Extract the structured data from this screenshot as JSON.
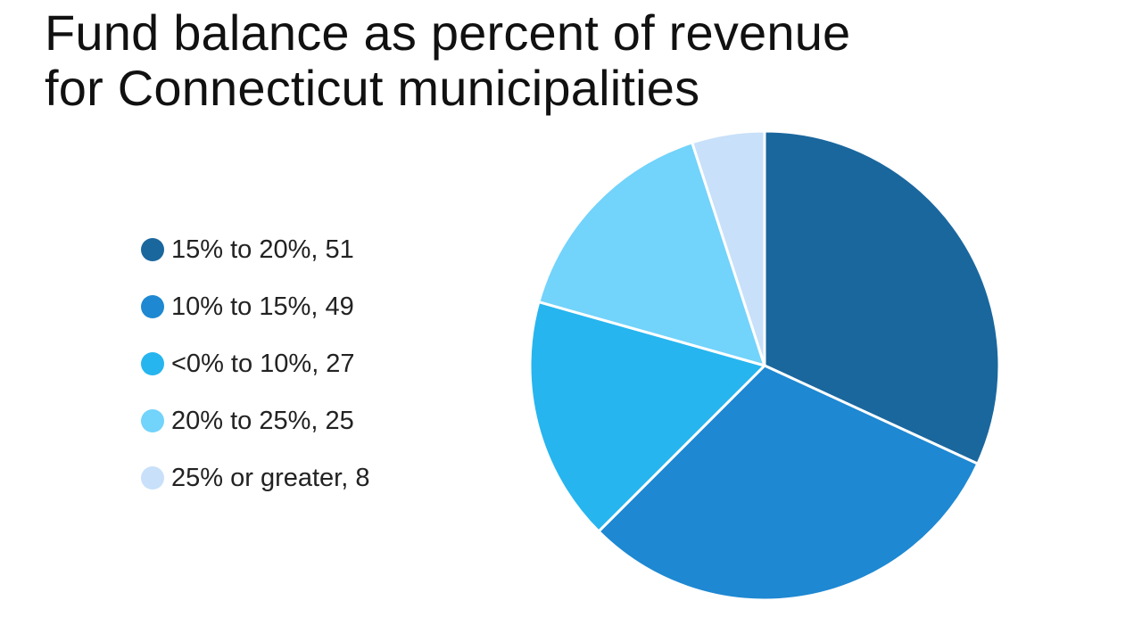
{
  "chart_data": {
    "type": "pie",
    "title_lines": [
      "Fund balance as percent of revenue",
      "for Connecticut municipalities"
    ],
    "legend_placement": "left",
    "slices": [
      {
        "label": "15% to 20%, 51",
        "category": "15% to 20%",
        "value": 51,
        "color": "#1a679e"
      },
      {
        "label": "10% to 15%, 49",
        "category": "10% to 15%",
        "value": 49,
        "color": "#1e88d2"
      },
      {
        "label": "<0% to 10%, 27",
        "category": "<0% to 10%",
        "value": 27,
        "color": "#26b5ef"
      },
      {
        "label": "20% to 25%, 25",
        "category": "20% to 25%",
        "value": 25,
        "color": "#72d3fb"
      },
      {
        "label": "25% or greater, 8",
        "category": "25% or greater",
        "value": 8,
        "color": "#c8e0f9"
      }
    ]
  }
}
